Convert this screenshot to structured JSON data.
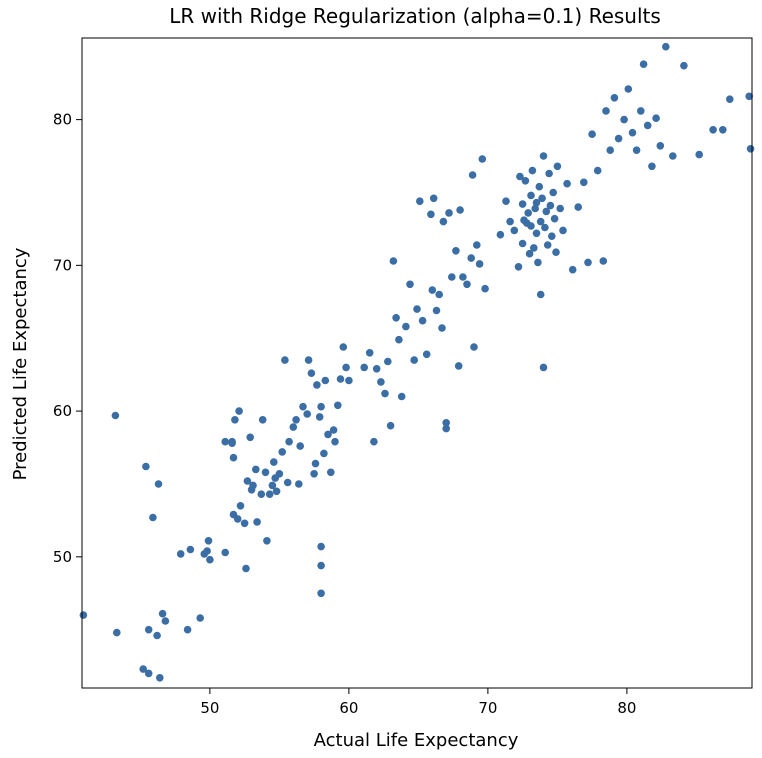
{
  "chart_data": {
    "type": "scatter",
    "title": "LR with Ridge Regularization (alpha=0.1) Results",
    "xlabel": "Actual Life Expectancy",
    "ylabel": "Predicted Life Expectancy",
    "xlim": [
      40.8,
      89.0
    ],
    "ylim": [
      41.0,
      85.6
    ],
    "xticks": [
      50,
      60,
      70,
      80
    ],
    "yticks": [
      50,
      60,
      70,
      80
    ],
    "grid": false,
    "marker_color": "#3a6ea5",
    "points": [
      [
        40.9,
        46.0
      ],
      [
        43.2,
        59.7
      ],
      [
        43.3,
        44.8
      ],
      [
        45.2,
        42.3
      ],
      [
        45.4,
        56.2
      ],
      [
        45.6,
        42.0
      ],
      [
        45.6,
        45.0
      ],
      [
        45.9,
        52.7
      ],
      [
        46.2,
        44.6
      ],
      [
        46.3,
        55.0
      ],
      [
        46.4,
        41.7
      ],
      [
        46.6,
        46.1
      ],
      [
        46.8,
        45.6
      ],
      [
        47.9,
        50.2
      ],
      [
        48.4,
        45.0
      ],
      [
        48.6,
        50.5
      ],
      [
        49.3,
        45.8
      ],
      [
        49.6,
        50.2
      ],
      [
        49.8,
        50.4
      ],
      [
        49.9,
        51.1
      ],
      [
        50.0,
        49.8
      ],
      [
        51.1,
        50.3
      ],
      [
        51.1,
        57.9
      ],
      [
        51.6,
        57.8
      ],
      [
        51.6,
        57.9
      ],
      [
        51.7,
        52.9
      ],
      [
        51.7,
        56.8
      ],
      [
        51.8,
        59.4
      ],
      [
        52.0,
        52.6
      ],
      [
        52.1,
        60.0
      ],
      [
        52.2,
        53.5
      ],
      [
        52.5,
        52.3
      ],
      [
        52.6,
        49.2
      ],
      [
        52.7,
        55.2
      ],
      [
        52.9,
        58.2
      ],
      [
        53.0,
        54.6
      ],
      [
        53.1,
        54.9
      ],
      [
        53.3,
        56.0
      ],
      [
        53.4,
        52.4
      ],
      [
        53.7,
        54.3
      ],
      [
        53.8,
        59.4
      ],
      [
        54.0,
        55.8
      ],
      [
        54.1,
        51.1
      ],
      [
        54.3,
        54.3
      ],
      [
        54.5,
        54.9
      ],
      [
        54.6,
        56.5
      ],
      [
        54.7,
        55.4
      ],
      [
        54.8,
        54.5
      ],
      [
        55.0,
        55.7
      ],
      [
        55.2,
        57.2
      ],
      [
        55.4,
        63.5
      ],
      [
        55.6,
        55.1
      ],
      [
        55.7,
        57.9
      ],
      [
        56.0,
        58.9
      ],
      [
        56.2,
        59.4
      ],
      [
        56.4,
        55.0
      ],
      [
        56.5,
        57.6
      ],
      [
        56.7,
        60.3
      ],
      [
        57.0,
        59.8
      ],
      [
        57.1,
        63.5
      ],
      [
        57.3,
        62.6
      ],
      [
        57.5,
        55.7
      ],
      [
        57.6,
        56.4
      ],
      [
        57.7,
        61.8
      ],
      [
        57.9,
        59.6
      ],
      [
        58.0,
        60.3
      ],
      [
        58.0,
        50.7
      ],
      [
        58.0,
        49.4
      ],
      [
        58.0,
        47.5
      ],
      [
        58.2,
        57.1
      ],
      [
        58.3,
        62.1
      ],
      [
        58.5,
        58.4
      ],
      [
        58.7,
        55.8
      ],
      [
        58.9,
        58.7
      ],
      [
        59.0,
        57.9
      ],
      [
        59.2,
        60.4
      ],
      [
        59.4,
        62.2
      ],
      [
        59.6,
        64.4
      ],
      [
        59.8,
        63.0
      ],
      [
        60.0,
        62.1
      ],
      [
        61.1,
        63.0
      ],
      [
        61.5,
        64.0
      ],
      [
        61.8,
        57.9
      ],
      [
        62.0,
        62.9
      ],
      [
        62.3,
        62.0
      ],
      [
        62.6,
        61.2
      ],
      [
        62.8,
        63.4
      ],
      [
        63.0,
        59.0
      ],
      [
        63.2,
        70.3
      ],
      [
        63.4,
        66.4
      ],
      [
        63.6,
        64.9
      ],
      [
        63.8,
        61.0
      ],
      [
        64.1,
        65.8
      ],
      [
        64.4,
        68.7
      ],
      [
        64.7,
        63.5
      ],
      [
        64.9,
        67.0
      ],
      [
        65.1,
        74.4
      ],
      [
        65.3,
        66.2
      ],
      [
        65.6,
        63.9
      ],
      [
        65.9,
        73.5
      ],
      [
        66.0,
        68.3
      ],
      [
        66.1,
        74.6
      ],
      [
        66.3,
        66.9
      ],
      [
        66.5,
        68.0
      ],
      [
        66.7,
        65.7
      ],
      [
        66.8,
        73.0
      ],
      [
        67.0,
        58.8
      ],
      [
        67.0,
        59.2
      ],
      [
        67.2,
        73.6
      ],
      [
        67.4,
        69.2
      ],
      [
        67.7,
        71.0
      ],
      [
        67.9,
        63.1
      ],
      [
        68.0,
        73.8
      ],
      [
        68.2,
        69.2
      ],
      [
        68.5,
        68.7
      ],
      [
        68.8,
        70.5
      ],
      [
        68.9,
        76.2
      ],
      [
        69.0,
        64.4
      ],
      [
        69.2,
        71.4
      ],
      [
        69.4,
        70.1
      ],
      [
        69.6,
        77.3
      ],
      [
        69.8,
        68.4
      ],
      [
        70.9,
        72.1
      ],
      [
        71.3,
        74.4
      ],
      [
        71.6,
        73.0
      ],
      [
        71.9,
        72.4
      ],
      [
        72.2,
        69.9
      ],
      [
        72.3,
        76.1
      ],
      [
        72.5,
        71.5
      ],
      [
        72.5,
        74.2
      ],
      [
        72.6,
        73.1
      ],
      [
        72.7,
        75.8
      ],
      [
        72.8,
        72.9
      ],
      [
        72.9,
        73.6
      ],
      [
        73.0,
        70.8
      ],
      [
        73.1,
        74.8
      ],
      [
        73.1,
        72.7
      ],
      [
        73.2,
        76.5
      ],
      [
        73.3,
        71.2
      ],
      [
        73.4,
        73.9
      ],
      [
        73.5,
        74.3
      ],
      [
        73.5,
        72.2
      ],
      [
        73.6,
        70.2
      ],
      [
        73.7,
        75.4
      ],
      [
        73.8,
        73.0
      ],
      [
        73.8,
        68.0
      ],
      [
        73.9,
        74.6
      ],
      [
        74.0,
        63.0
      ],
      [
        74.0,
        77.5
      ],
      [
        74.1,
        72.6
      ],
      [
        74.2,
        73.7
      ],
      [
        74.3,
        71.4
      ],
      [
        74.4,
        76.3
      ],
      [
        74.5,
        74.1
      ],
      [
        74.6,
        72.0
      ],
      [
        74.7,
        75.0
      ],
      [
        74.8,
        73.2
      ],
      [
        74.9,
        70.9
      ],
      [
        75.0,
        76.8
      ],
      [
        75.2,
        73.9
      ],
      [
        75.4,
        72.4
      ],
      [
        75.7,
        75.6
      ],
      [
        76.1,
        69.7
      ],
      [
        76.5,
        74.0
      ],
      [
        76.9,
        75.7
      ],
      [
        77.2,
        70.2
      ],
      [
        77.5,
        79.0
      ],
      [
        77.9,
        76.5
      ],
      [
        78.3,
        70.3
      ],
      [
        78.5,
        80.6
      ],
      [
        78.8,
        77.9
      ],
      [
        79.1,
        81.5
      ],
      [
        79.4,
        78.7
      ],
      [
        79.8,
        80.0
      ],
      [
        80.1,
        82.1
      ],
      [
        80.4,
        79.1
      ],
      [
        80.7,
        77.9
      ],
      [
        81.0,
        80.6
      ],
      [
        81.2,
        83.8
      ],
      [
        81.5,
        79.6
      ],
      [
        81.8,
        76.8
      ],
      [
        82.1,
        80.1
      ],
      [
        82.4,
        78.2
      ],
      [
        82.8,
        85.0
      ],
      [
        83.3,
        77.5
      ],
      [
        84.1,
        83.7
      ],
      [
        85.2,
        77.6
      ],
      [
        86.2,
        79.3
      ],
      [
        86.9,
        79.3
      ],
      [
        87.4,
        81.4
      ],
      [
        88.8,
        81.6
      ],
      [
        88.9,
        78.0
      ]
    ]
  }
}
